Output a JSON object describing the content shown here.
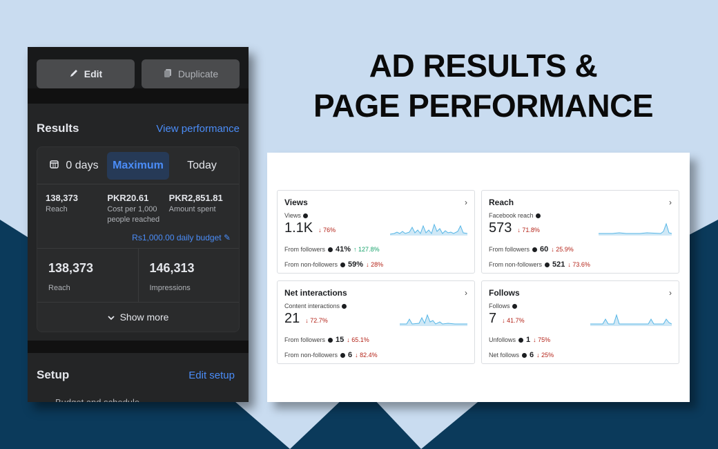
{
  "headline": {
    "line1": "AD RESULTS &",
    "line2": "PAGE PERFORMANCE"
  },
  "colors": {
    "bg": "#c9dcf0",
    "navy": "#0b3a5b",
    "accent_blue": "#4b8df8",
    "panel": "#18191a",
    "down_red": "#b42318",
    "up_green": "#17a36b"
  },
  "phone": {
    "edit_label": "Edit",
    "duplicate_label": "Duplicate",
    "results_title": "Results",
    "view_performance": "View performance",
    "range": {
      "days": "0 days",
      "maximum": "Maximum",
      "today": "Today"
    },
    "metrics3": [
      {
        "value": "138,373",
        "label": "Reach"
      },
      {
        "value": "PKR20.61",
        "label": "Cost per 1,000 people reached"
      },
      {
        "value": "PKR2,851.81",
        "label": "Amount spent"
      }
    ],
    "budget": "Rs1,000.00 daily budget",
    "metrics2": [
      {
        "value": "138,373",
        "label": "Reach"
      },
      {
        "value": "146,313",
        "label": "Impressions"
      }
    ],
    "show_more": "Show more",
    "setup_title": "Setup",
    "edit_setup": "Edit setup",
    "setup_sub": "Budget and schedule"
  },
  "cards": {
    "views": {
      "title": "Views",
      "sub": "Views",
      "value": "1.1K",
      "change": "↓ 76%",
      "r1_label": "From followers",
      "r1_val": "41%",
      "r1_chg": "↑ 127.8%",
      "r2_label": "From non-followers",
      "r2_val": "59%",
      "r2_chg": "↓ 28%"
    },
    "reach": {
      "title": "Reach",
      "sub": "Facebook reach",
      "value": "573",
      "change": "↓ 71.8%",
      "r1_label": "From followers",
      "r1_val": "60",
      "r1_chg": "↓ 25.9%",
      "r2_label": "From non-followers",
      "r2_val": "521",
      "r2_chg": "↓ 73.6%"
    },
    "net": {
      "title": "Net interactions",
      "sub": "Content interactions",
      "value": "21",
      "change": "↓ 72.7%",
      "r1_label": "From followers",
      "r1_val": "15",
      "r1_chg": "↓ 65.1%",
      "r2_label": "From non-followers",
      "r2_val": "6",
      "r2_chg": "↓ 82.4%"
    },
    "follows": {
      "title": "Follows",
      "sub": "Follows",
      "value": "7",
      "change": "↓ 41.7%",
      "r1_label": "Unfollows",
      "r1_val": "1",
      "r1_chg": "↓ 75%",
      "r2_label": "Net follows",
      "r2_val": "6",
      "r2_chg": "↓ 25%"
    }
  }
}
